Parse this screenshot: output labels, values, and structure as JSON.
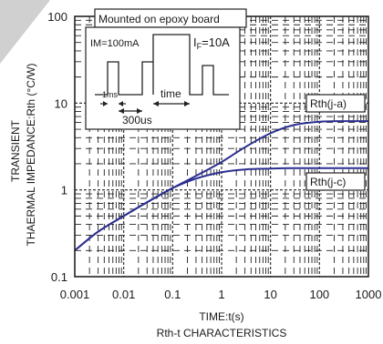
{
  "chart_data": {
    "type": "line",
    "xlabel": "TIME:t(s)",
    "ylabel_lines": [
      "TRANSIENT",
      "THAERMAL IMPEDANCE:Rth (°C/W)"
    ],
    "caption": "Rth-t CHARACTERISTICS",
    "x_scale": "log",
    "y_scale": "log",
    "xlim": [
      0.001,
      1000
    ],
    "ylim": [
      0.1,
      100
    ],
    "x_ticks": [
      "0.001",
      "0.01",
      "0.1",
      "1",
      "10",
      "100",
      "1000"
    ],
    "y_ticks": [
      "0.1",
      "1",
      "10",
      "100"
    ],
    "grid": true,
    "series": [
      {
        "name": "Rth(j-a)",
        "color": "#2b2f8f",
        "x": [
          0.001,
          0.003,
          0.01,
          0.03,
          0.1,
          0.3,
          1,
          3,
          10,
          30,
          100,
          300,
          1000
        ],
        "y": [
          0.2,
          0.33,
          0.5,
          0.72,
          1.05,
          1.45,
          2.1,
          3.1,
          4.5,
          5.6,
          6.1,
          6.2,
          6.2
        ]
      },
      {
        "name": "Rth(j-c)",
        "color": "#2b2f8f",
        "x": [
          0.001,
          0.003,
          0.01,
          0.03,
          0.1,
          0.3,
          1,
          3,
          10,
          30,
          100,
          300,
          1000
        ],
        "y": [
          0.2,
          0.33,
          0.5,
          0.72,
          1.05,
          1.35,
          1.6,
          1.72,
          1.76,
          1.78,
          1.78,
          1.78,
          1.78
        ]
      }
    ],
    "annotations": {
      "board": "Mounted on epoxy board",
      "im": "IM=100mA",
      "if_prefix": "I",
      "if_sub": "F",
      "if_suffix": "=10A",
      "pulse_width": "1ms",
      "time": "time",
      "period": "300us"
    }
  },
  "colors": {
    "curve": "#2b2f8f",
    "axis": "#222222",
    "grid": "#222222",
    "corner_shape": "#d0d0d0"
  }
}
